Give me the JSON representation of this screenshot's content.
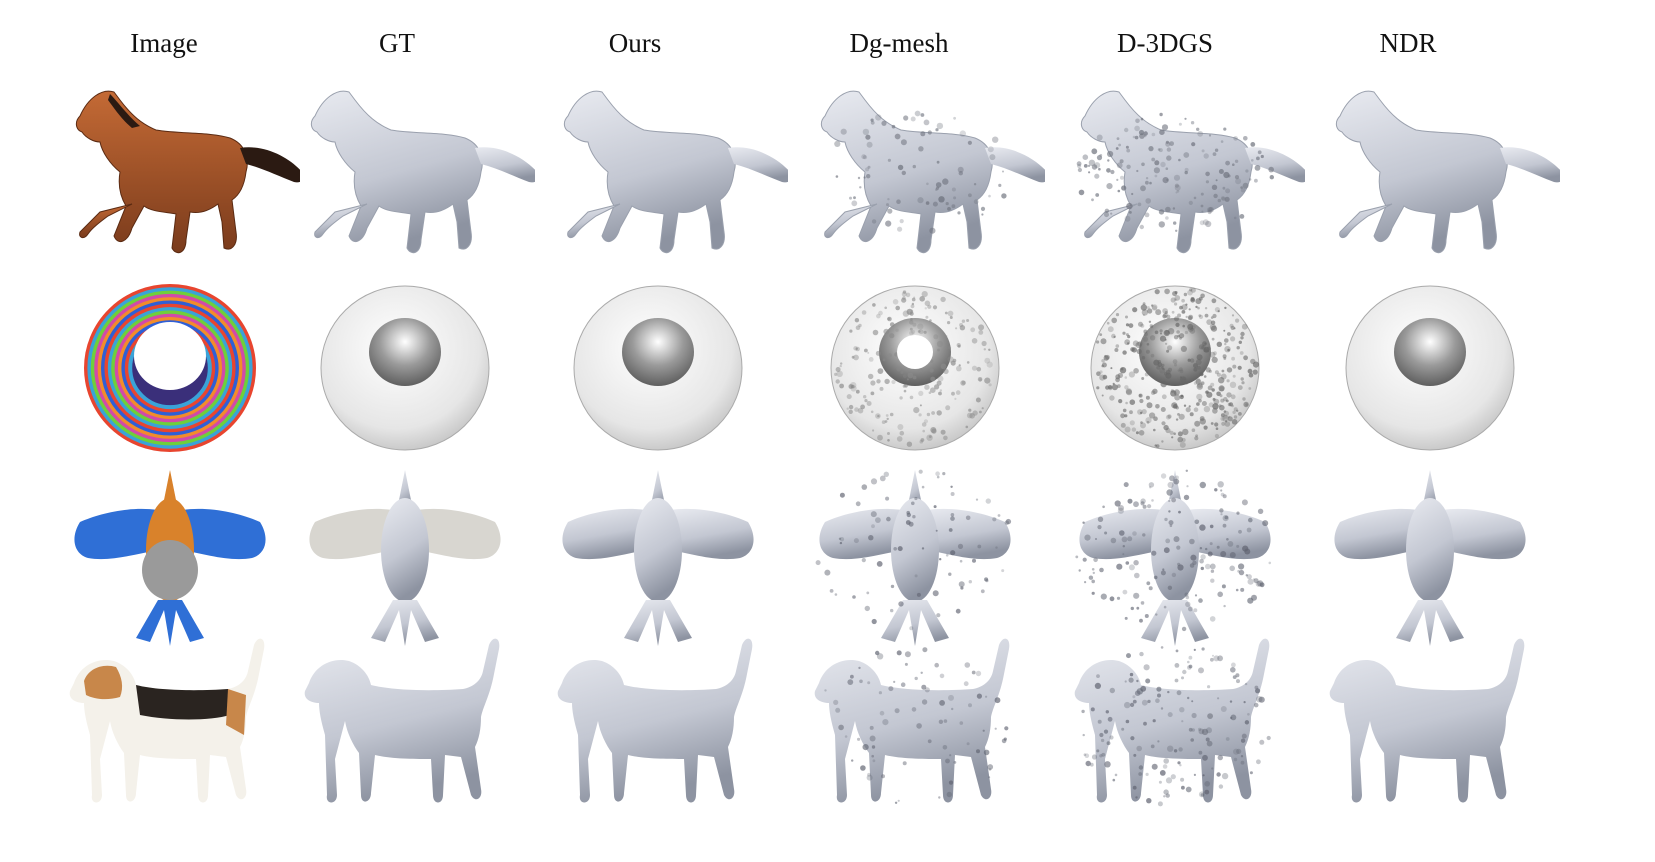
{
  "figure": {
    "columns": [
      "Image",
      "GT",
      "Ours",
      "Dg-mesh",
      "D-3DGS",
      "NDR"
    ],
    "rows": [
      "horse",
      "torus",
      "bird",
      "dog"
    ],
    "colors": {
      "background": "#ffffff",
      "mesh_light": "#e8eaf0",
      "mesh_mid": "#c3c7d2",
      "mesh_dark": "#8d93a1",
      "horse_coat": "#a0522d",
      "horse_mane": "#2b1a12",
      "bird_orange": "#d9822b",
      "bird_blue": "#2f6fd6",
      "bird_gray": "#9a9a9a",
      "dog_white": "#f4f1ea",
      "dog_tan": "#c8874a",
      "dog_black": "#2a2420"
    }
  }
}
